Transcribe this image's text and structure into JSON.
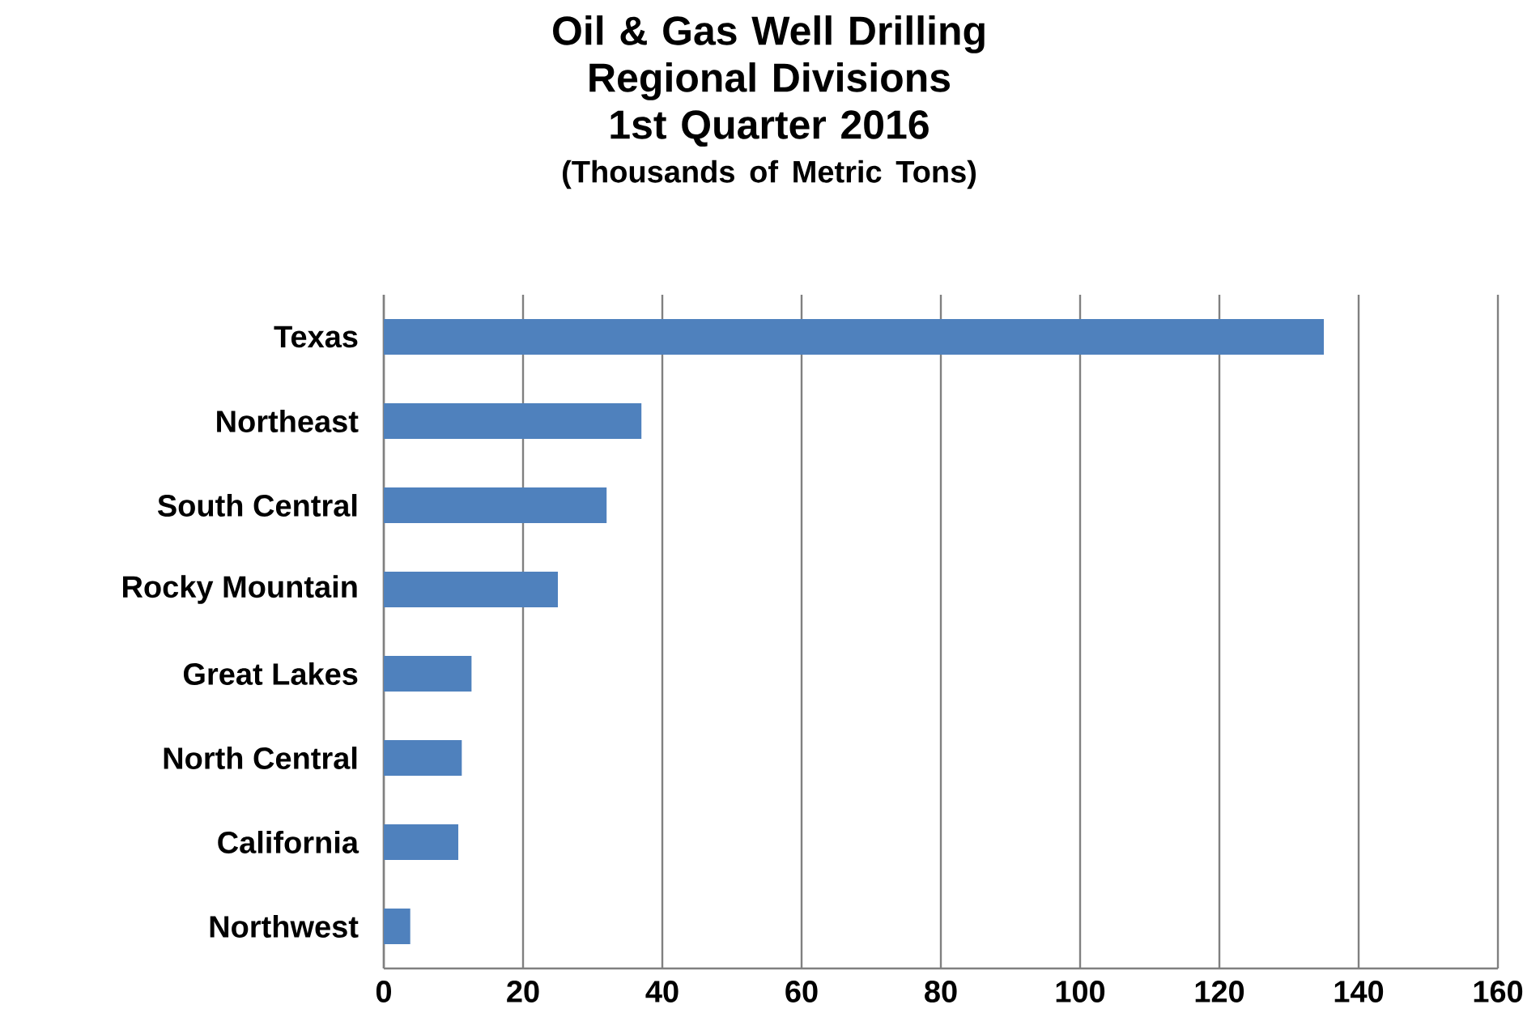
{
  "chart_data": {
    "type": "bar",
    "orientation": "horizontal",
    "title": "Oil & Gas Well Drilling Regional Divisions 1st Quarter 2016",
    "subtitle": "(Thousands of Metric Tons)",
    "categories": [
      "Texas",
      "Northeast",
      "South Central",
      "Rocky Mountain",
      "Great Lakes",
      "North Central",
      "California",
      "Northwest"
    ],
    "values": [
      135,
      37,
      32,
      25,
      12.6,
      11.2,
      10.7,
      3.8
    ],
    "color": "#4f81bd",
    "xlim": [
      0,
      160
    ],
    "xticks": [
      0,
      20,
      40,
      60,
      80,
      100,
      120,
      140,
      160
    ],
    "grid": "x"
  }
}
